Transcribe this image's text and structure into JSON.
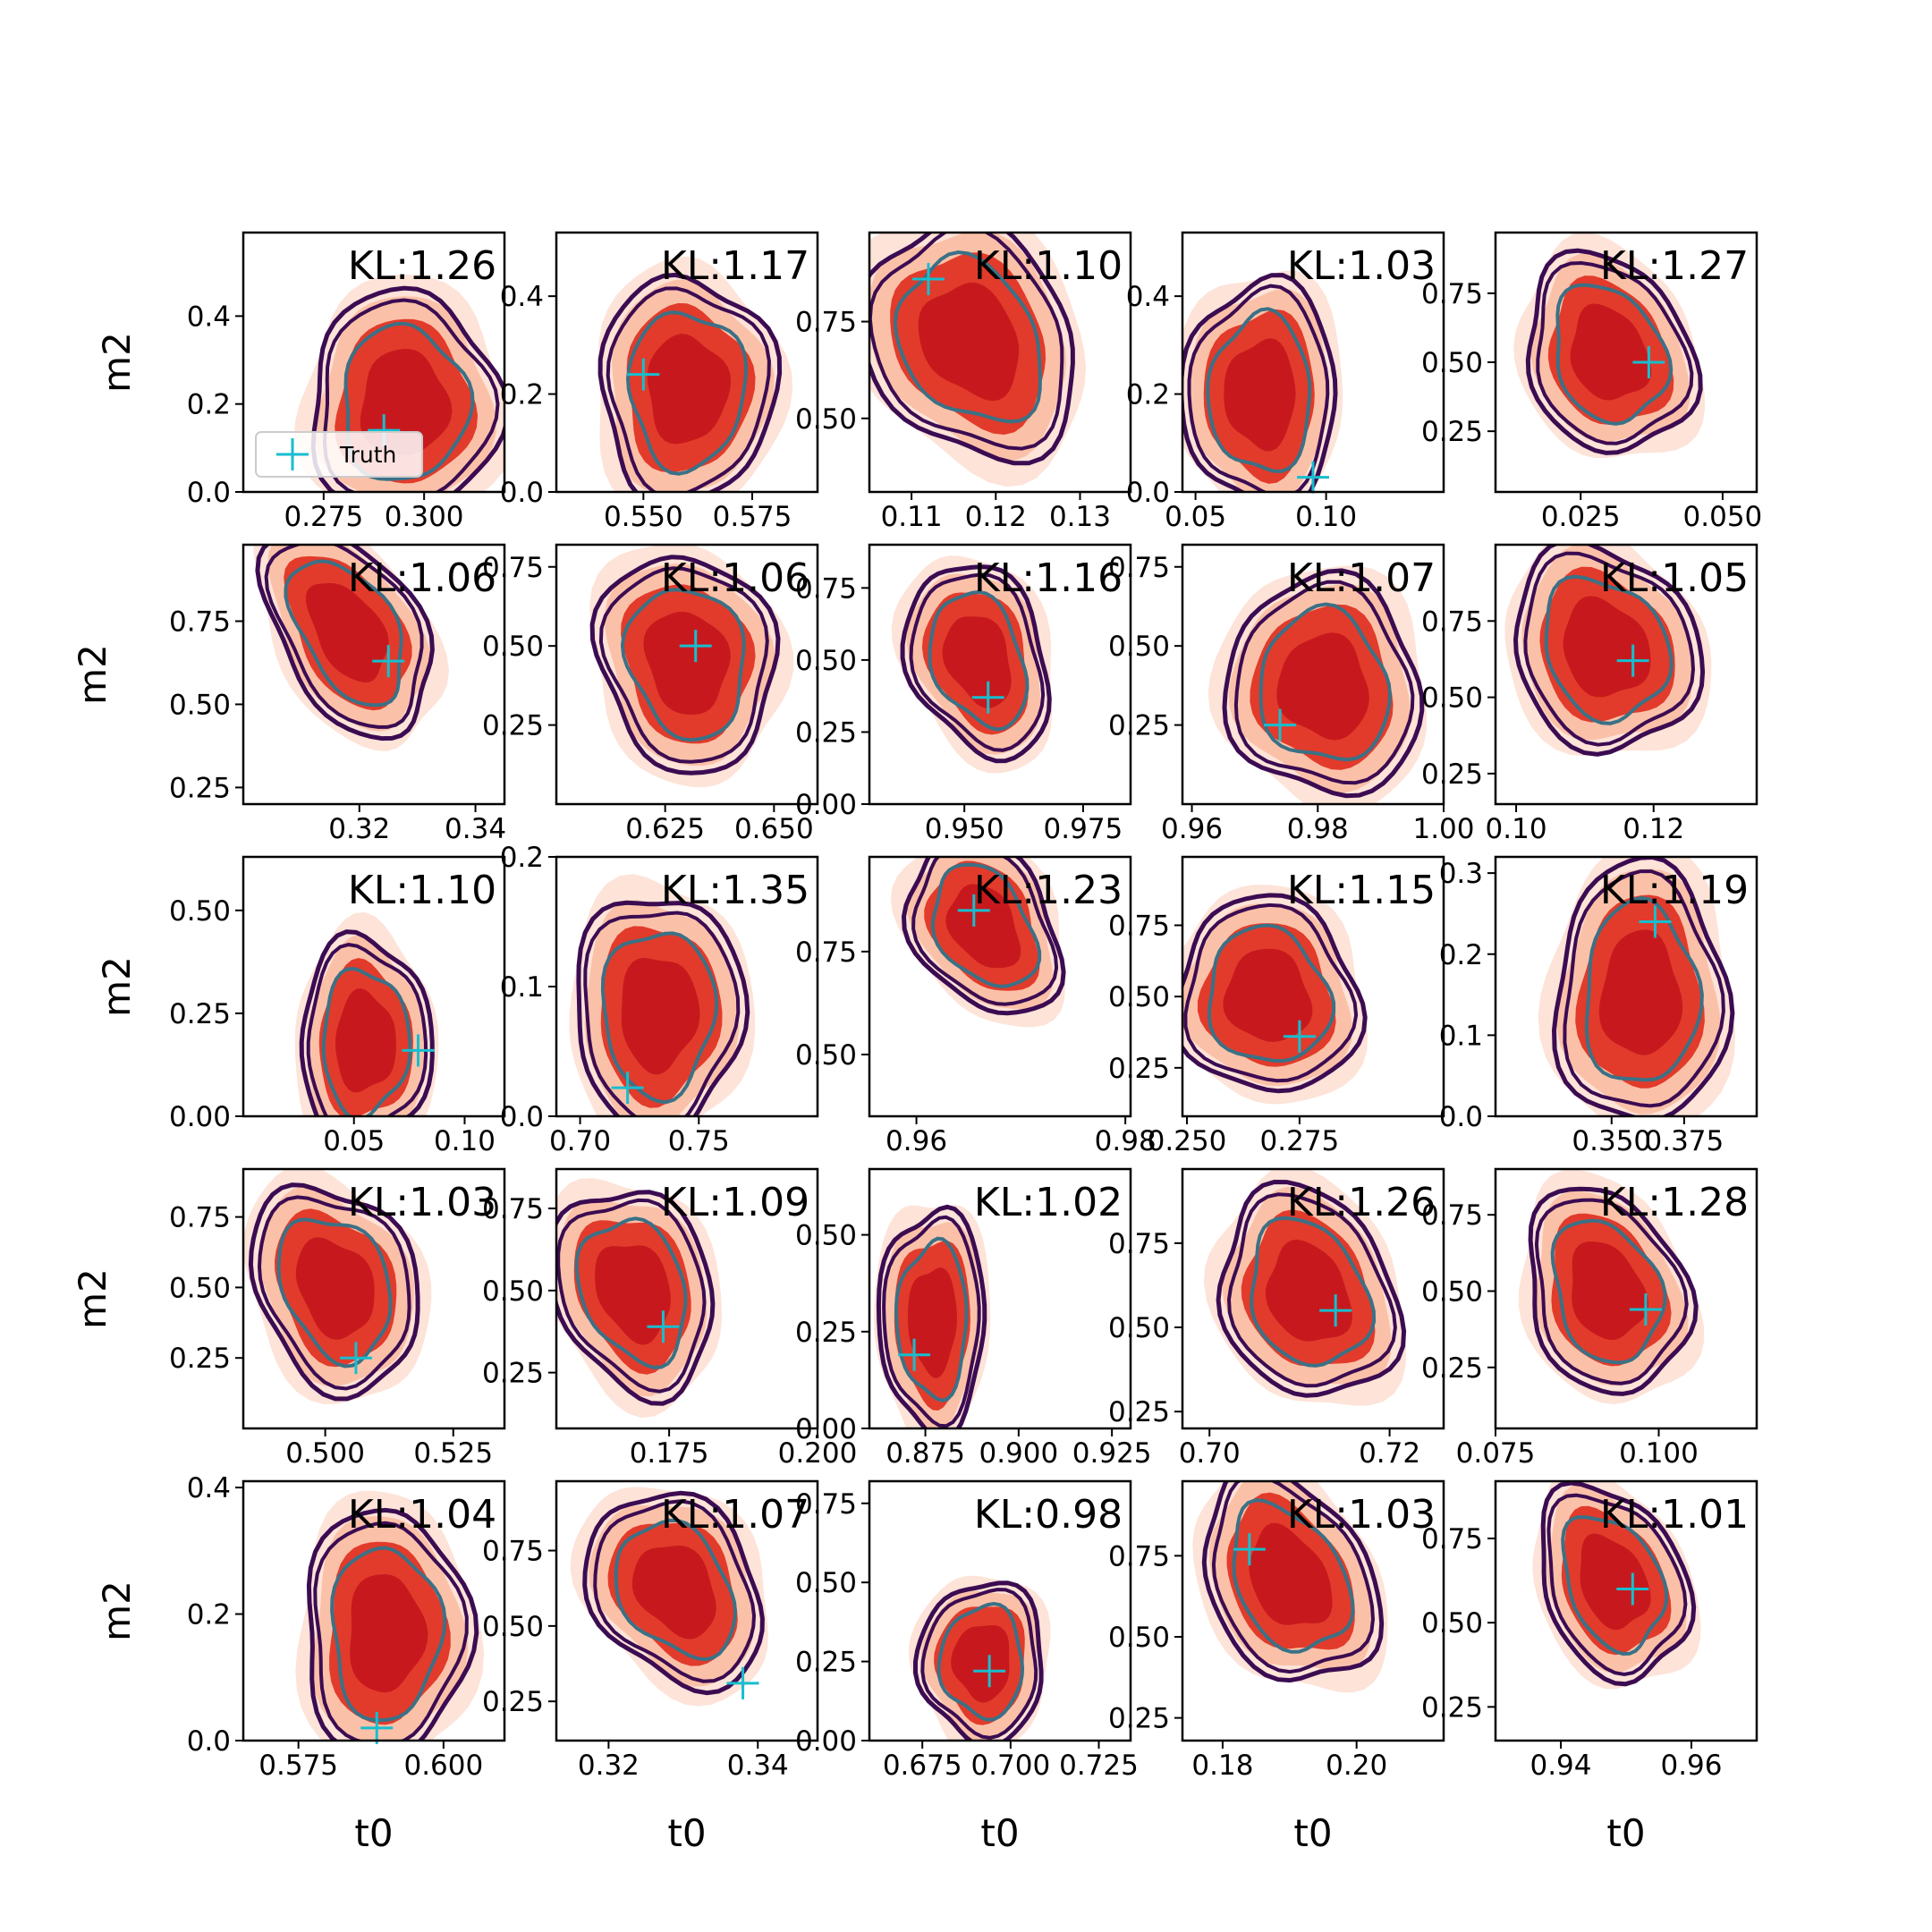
{
  "colors": {
    "fill_levels": [
      "#fde3d8",
      "#fbc1a8",
      "#e23b2b",
      "#c7191d"
    ],
    "outer_contour": "#3b0c52",
    "inner_contour": "#3b7186",
    "truth_marker": "#17becf",
    "frame": "#000000",
    "background": "#ffffff"
  },
  "legend": {
    "label": "Truth",
    "marker": "plus"
  },
  "chart_data": {
    "type": "contour-grid",
    "rows": 5,
    "cols": 5,
    "xlabel": "t0",
    "ylabel": "m2",
    "panels": [
      {
        "kl": "KL:1.26",
        "xlim": [
          0.255,
          0.32
        ],
        "ylim": [
          0,
          0.59
        ],
        "xticks": [
          "0.275",
          "0.300"
        ],
        "xtick_values": [
          0.275,
          0.3
        ],
        "yticks": [
          "0.0",
          "0.2",
          "0.4"
        ],
        "ytick_values": [
          0,
          0.2,
          0.4
        ],
        "truth": [
          0.29,
          0.14
        ],
        "center": [
          0.295,
          0.2
        ],
        "spread": [
          0.02,
          0.22
        ],
        "tilt": 0.0,
        "legend": true
      },
      {
        "kl": "KL:1.17",
        "xlim": [
          0.53,
          0.59
        ],
        "ylim": [
          0,
          0.53
        ],
        "xticks": [
          "0.550",
          "0.575"
        ],
        "xtick_values": [
          0.55,
          0.575
        ],
        "yticks": [
          "0.0",
          "0.2",
          "0.4"
        ],
        "ytick_values": [
          0,
          0.2,
          0.4
        ],
        "truth": [
          0.55,
          0.24
        ],
        "center": [
          0.56,
          0.21
        ],
        "spread": [
          0.017,
          0.2
        ],
        "tilt": 0.0
      },
      {
        "kl": "KL:1.10",
        "xlim": [
          0.105,
          0.136
        ],
        "ylim": [
          0.31,
          0.98
        ],
        "xticks": [
          "0.11",
          "0.12",
          "0.13"
        ],
        "xtick_values": [
          0.11,
          0.12,
          0.13
        ],
        "yticks": [
          "0.50",
          "0.75"
        ],
        "ytick_values": [
          0.5,
          0.75
        ],
        "truth": [
          0.112,
          0.86
        ],
        "center": [
          0.117,
          0.7
        ],
        "spread": [
          0.01,
          0.28
        ],
        "tilt": -0.55
      },
      {
        "kl": "KL:1.03",
        "xlim": [
          0.045,
          0.145
        ],
        "ylim": [
          0,
          0.53
        ],
        "xticks": [
          "0.05",
          "0.10"
        ],
        "xtick_values": [
          0.05,
          0.1
        ],
        "yticks": [
          "0.0",
          "0.2",
          "0.4"
        ],
        "ytick_values": [
          0,
          0.2,
          0.4
        ],
        "truth": [
          0.095,
          0.03
        ],
        "center": [
          0.075,
          0.2
        ],
        "spread": [
          0.025,
          0.2
        ],
        "tilt": 0.0
      },
      {
        "kl": "KL:1.27",
        "xlim": [
          0.01,
          0.056
        ],
        "ylim": [
          0.03,
          0.97
        ],
        "xticks": [
          "0.025",
          "0.050"
        ],
        "xtick_values": [
          0.025,
          0.05
        ],
        "yticks": [
          "0.25",
          "0.50",
          "0.75"
        ],
        "ytick_values": [
          0.25,
          0.5,
          0.75
        ],
        "truth": [
          0.037,
          0.5
        ],
        "center": [
          0.03,
          0.53
        ],
        "spread": [
          0.012,
          0.32
        ],
        "tilt": -0.4
      },
      {
        "kl": "KL:1.06",
        "xlim": [
          0.3,
          0.345
        ],
        "ylim": [
          0.2,
          0.98
        ],
        "xticks": [
          "0.32",
          "0.34"
        ],
        "xtick_values": [
          0.32,
          0.34
        ],
        "yticks": [
          "0.25",
          "0.50",
          "0.75"
        ],
        "ytick_values": [
          0.25,
          0.5,
          0.75
        ],
        "truth": [
          0.325,
          0.63
        ],
        "center": [
          0.318,
          0.72
        ],
        "spread": [
          0.01,
          0.3
        ],
        "tilt": -0.55
      },
      {
        "kl": "KL:1.06",
        "xlim": [
          0.6,
          0.66
        ],
        "ylim": [
          0,
          0.82
        ],
        "xticks": [
          "0.625",
          "0.650"
        ],
        "xtick_values": [
          0.625,
          0.65
        ],
        "yticks": [
          "0.25",
          "0.50",
          "0.75"
        ],
        "ytick_values": [
          0.25,
          0.5,
          0.75
        ],
        "truth": [
          0.632,
          0.5
        ],
        "center": [
          0.63,
          0.45
        ],
        "spread": [
          0.017,
          0.3
        ],
        "tilt": -0.25
      },
      {
        "kl": "KL:1.16",
        "xlim": [
          0.93,
          0.985
        ],
        "ylim": [
          0,
          0.9
        ],
        "xticks": [
          "0.950",
          "0.975"
        ],
        "xtick_values": [
          0.95,
          0.975
        ],
        "yticks": [
          "0.00",
          "0.25",
          "0.50",
          "0.75"
        ],
        "ytick_values": [
          0,
          0.25,
          0.5,
          0.75
        ],
        "truth": [
          0.955,
          0.37
        ],
        "center": [
          0.953,
          0.5
        ],
        "spread": [
          0.012,
          0.3
        ],
        "tilt": -0.35
      },
      {
        "kl": "KL:1.07",
        "xlim": [
          0.9585,
          1.0
        ],
        "ylim": [
          0,
          0.82
        ],
        "xticks": [
          "0.96",
          "0.98",
          "1.00"
        ],
        "xtick_values": [
          0.96,
          0.98,
          1.0
        ],
        "yticks": [
          "0.25",
          "0.50",
          "0.75"
        ],
        "ytick_values": [
          0.25,
          0.5,
          0.75
        ],
        "truth": [
          0.974,
          0.25
        ],
        "center": [
          0.981,
          0.37
        ],
        "spread": [
          0.013,
          0.3
        ],
        "tilt": -0.2
      },
      {
        "kl": "KL:1.05",
        "xlim": [
          0.097,
          0.135
        ],
        "ylim": [
          0.15,
          1.0
        ],
        "xticks": [
          "0.10",
          "0.12"
        ],
        "xtick_values": [
          0.1,
          0.12
        ],
        "yticks": [
          "0.25",
          "0.50",
          "0.75"
        ],
        "ytick_values": [
          0.25,
          0.5,
          0.75
        ],
        "truth": [
          0.117,
          0.62
        ],
        "center": [
          0.113,
          0.66
        ],
        "spread": [
          0.011,
          0.3
        ],
        "tilt": -0.5
      },
      {
        "kl": "KL:1.10",
        "xlim": [
          0.0,
          0.118
        ],
        "ylim": [
          0,
          0.63
        ],
        "xticks": [
          "0.05",
          "0.10"
        ],
        "xtick_values": [
          0.05,
          0.1
        ],
        "yticks": [
          "0.00",
          "0.25",
          "0.50"
        ],
        "ytick_values": [
          0,
          0.25,
          0.5
        ],
        "truth": [
          0.079,
          0.16
        ],
        "center": [
          0.055,
          0.18
        ],
        "spread": [
          0.025,
          0.22
        ],
        "tilt": 0.0
      },
      {
        "kl": "KL:1.35",
        "xlim": [
          0.69,
          0.8
        ],
        "ylim": [
          0,
          0.2
        ],
        "xticks": [
          "0.70",
          "0.75"
        ],
        "xtick_values": [
          0.7,
          0.75
        ],
        "yticks": [
          "0.0",
          "0.1",
          "0.2"
        ],
        "ytick_values": [
          0,
          0.1,
          0.2
        ],
        "truth": [
          0.72,
          0.022
        ],
        "center": [
          0.733,
          0.08
        ],
        "spread": [
          0.03,
          0.08
        ],
        "tilt": 0.0
      },
      {
        "kl": "KL:1.23",
        "xlim": [
          0.9555,
          0.9805
        ],
        "ylim": [
          0.35,
          0.98
        ],
        "xticks": [
          "0.96",
          "0.98"
        ],
        "xtick_values": [
          0.96,
          0.98
        ],
        "yticks": [
          "0.50",
          "0.75"
        ],
        "ytick_values": [
          0.5,
          0.75
        ],
        "truth": [
          0.9655,
          0.85
        ],
        "center": [
          0.9665,
          0.81
        ],
        "spread": [
          0.0055,
          0.2
        ],
        "tilt": -0.55
      },
      {
        "kl": "KL:1.15",
        "xlim": [
          0.249,
          0.307
        ],
        "ylim": [
          0.08,
          0.99
        ],
        "xticks": [
          "0.250",
          "0.275"
        ],
        "xtick_values": [
          0.25,
          0.275
        ],
        "yticks": [
          "0.25",
          "0.50",
          "0.75"
        ],
        "ytick_values": [
          0.25,
          0.5,
          0.75
        ],
        "truth": [
          0.275,
          0.36
        ],
        "center": [
          0.268,
          0.5
        ],
        "spread": [
          0.017,
          0.3
        ],
        "tilt": -0.35
      },
      {
        "kl": "KL:1.19",
        "xlim": [
          0.31,
          0.4
        ],
        "ylim": [
          0,
          0.32
        ],
        "xticks": [
          "0.350",
          "0.375"
        ],
        "xtick_values": [
          0.35,
          0.375
        ],
        "yticks": [
          "0.0",
          "0.1",
          "0.2",
          "0.3"
        ],
        "ytick_values": [
          0,
          0.1,
          0.2,
          0.3
        ],
        "truth": [
          0.365,
          0.24
        ],
        "center": [
          0.36,
          0.15
        ],
        "spread": [
          0.025,
          0.14
        ],
        "tilt": 0.0
      },
      {
        "kl": "KL:1.03",
        "xlim": [
          0.484,
          0.535
        ],
        "ylim": [
          0,
          0.92
        ],
        "xticks": [
          "0.500",
          "0.525"
        ],
        "xtick_values": [
          0.5,
          0.525
        ],
        "yticks": [
          "0.25",
          "0.50",
          "0.75"
        ],
        "ytick_values": [
          0.25,
          0.5,
          0.75
        ],
        "truth": [
          0.506,
          0.25
        ],
        "center": [
          0.502,
          0.5
        ],
        "spread": [
          0.013,
          0.33
        ],
        "tilt": -0.4
      },
      {
        "kl": "KL:1.09",
        "xlim": [
          0.156,
          0.2
        ],
        "ylim": [
          0.08,
          0.87
        ],
        "xticks": [
          "0.175",
          "0.200"
        ],
        "xtick_values": [
          0.175,
          0.2
        ],
        "yticks": [
          "0.25",
          "0.50",
          "0.75"
        ],
        "ytick_values": [
          0.25,
          0.5,
          0.75
        ],
        "truth": [
          0.174,
          0.39
        ],
        "center": [
          0.169,
          0.5
        ],
        "spread": [
          0.011,
          0.28
        ],
        "tilt": -0.35
      },
      {
        "kl": "KL:1.02",
        "xlim": [
          0.86,
          0.93
        ],
        "ylim": [
          0,
          0.67
        ],
        "xticks": [
          "0.875",
          "0.900",
          "0.925"
        ],
        "xtick_values": [
          0.875,
          0.9,
          0.925
        ],
        "yticks": [
          "0.00",
          "0.25",
          "0.50"
        ],
        "ytick_values": [
          0,
          0.25,
          0.5
        ],
        "truth": [
          0.872,
          0.19
        ],
        "center": [
          0.877,
          0.28
        ],
        "spread": [
          0.012,
          0.25
        ],
        "tilt": 0.0
      },
      {
        "kl": "KL:1.26",
        "xlim": [
          0.697,
          0.726
        ],
        "ylim": [
          0.2,
          0.97
        ],
        "xticks": [
          "0.70",
          "0.72"
        ],
        "xtick_values": [
          0.7,
          0.72
        ],
        "yticks": [
          "0.25",
          "0.50",
          "0.75"
        ],
        "ytick_values": [
          0.25,
          0.5,
          0.75
        ],
        "truth": [
          0.714,
          0.55
        ],
        "center": [
          0.711,
          0.6
        ],
        "spread": [
          0.008,
          0.28
        ],
        "tilt": -0.4
      },
      {
        "kl": "KL:1.28",
        "xlim": [
          0.075,
          0.115
        ],
        "ylim": [
          0.05,
          0.9
        ],
        "xticks": [
          "0.075",
          "0.100"
        ],
        "xtick_values": [
          0.075,
          0.1
        ],
        "yticks": [
          "0.25",
          "0.50",
          "0.75"
        ],
        "ytick_values": [
          0.25,
          0.5,
          0.75
        ],
        "truth": [
          0.098,
          0.44
        ],
        "center": [
          0.092,
          0.5
        ],
        "spread": [
          0.01,
          0.3
        ],
        "tilt": -0.35
      },
      {
        "kl": "KL:1.04",
        "xlim": [
          0.5655,
          0.6105
        ],
        "ylim": [
          0,
          0.41
        ],
        "xticks": [
          "0.575",
          "0.600"
        ],
        "xtick_values": [
          0.575,
          0.6
        ],
        "yticks": [
          "0.0",
          "0.2",
          "0.4"
        ],
        "ytick_values": [
          0,
          0.2,
          0.4
        ],
        "truth": [
          0.5885,
          0.02
        ],
        "center": [
          0.59,
          0.17
        ],
        "spread": [
          0.012,
          0.17
        ],
        "tilt": 0.0
      },
      {
        "kl": "KL:1.07",
        "xlim": [
          0.313,
          0.348
        ],
        "ylim": [
          0.12,
          0.98
        ],
        "xticks": [
          "0.32",
          "0.34"
        ],
        "xtick_values": [
          0.32,
          0.34
        ],
        "yticks": [
          "0.25",
          "0.50",
          "0.75"
        ],
        "ytick_values": [
          0.25,
          0.5,
          0.75
        ],
        "truth": [
          0.338,
          0.31
        ],
        "center": [
          0.329,
          0.62
        ],
        "spread": [
          0.009,
          0.3
        ],
        "tilt": -0.6
      },
      {
        "kl": "KL:0.98",
        "xlim": [
          0.66,
          0.734
        ],
        "ylim": [
          0,
          0.82
        ],
        "xticks": [
          "0.675",
          "0.700",
          "0.725"
        ],
        "xtick_values": [
          0.675,
          0.7,
          0.725
        ],
        "yticks": [
          "0.00",
          "0.25",
          "0.50",
          "0.75"
        ],
        "ytick_values": [
          0,
          0.25,
          0.5,
          0.75
        ],
        "truth": [
          0.694,
          0.22
        ],
        "center": [
          0.692,
          0.25
        ],
        "spread": [
          0.015,
          0.22
        ],
        "tilt": 0.0
      },
      {
        "kl": "KL:1.03",
        "xlim": [
          0.174,
          0.213
        ],
        "ylim": [
          0.18,
          0.98
        ],
        "xticks": [
          "0.18",
          "0.20"
        ],
        "xtick_values": [
          0.18,
          0.2
        ],
        "yticks": [
          "0.25",
          "0.50",
          "0.75"
        ],
        "ytick_values": [
          0.25,
          0.5,
          0.75
        ],
        "truth": [
          0.184,
          0.77
        ],
        "center": [
          0.19,
          0.68
        ],
        "spread": [
          0.01,
          0.3
        ],
        "tilt": -0.5
      },
      {
        "kl": "KL:1.01",
        "xlim": [
          0.93,
          0.97
        ],
        "ylim": [
          0.15,
          0.92
        ],
        "xticks": [
          "0.94",
          "0.96"
        ],
        "xtick_values": [
          0.94,
          0.96
        ],
        "yticks": [
          "0.25",
          "0.50",
          "0.75"
        ],
        "ytick_values": [
          0.25,
          0.5,
          0.75
        ],
        "truth": [
          0.951,
          0.6
        ],
        "center": [
          0.948,
          0.62
        ],
        "spread": [
          0.009,
          0.26
        ],
        "tilt": -0.4
      }
    ]
  }
}
